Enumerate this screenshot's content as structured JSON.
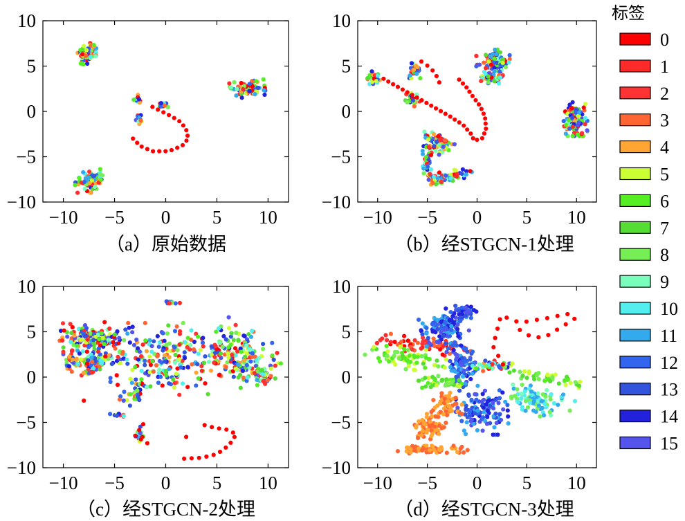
{
  "chart_data": [
    {
      "type": "scatter",
      "caption": "（a）原始数据",
      "xlim": [
        -12,
        12
      ],
      "ylim": [
        -10,
        10
      ],
      "xticks": [
        -10,
        -5,
        0,
        5,
        10
      ],
      "yticks": [
        -10,
        -5,
        0,
        5,
        10
      ],
      "clusters": [
        {
          "cx": -7.7,
          "cy": 6.4,
          "rx": 0.75,
          "ry": 1.05,
          "tilt": -0.4,
          "n": 70,
          "palette": "mixed"
        },
        {
          "cx": 8.0,
          "cy": 2.5,
          "rx": 1.4,
          "ry": 0.75,
          "tilt": 0.15,
          "n": 90,
          "palette": "mixed"
        },
        {
          "cx": -2.7,
          "cy": 1.4,
          "rx": 0.35,
          "ry": 0.35,
          "tilt": 0,
          "n": 14,
          "palette": "mixed"
        },
        {
          "cx": -2.6,
          "cy": -0.9,
          "rx": 0.3,
          "ry": 0.4,
          "tilt": 0,
          "n": 12,
          "palette": "mixed"
        },
        {
          "cx": -0.2,
          "cy": 0.7,
          "rx": 0.45,
          "ry": 0.35,
          "tilt": 0,
          "n": 14,
          "palette": "mixed"
        },
        {
          "cx": -7.5,
          "cy": -7.7,
          "rx": 1.2,
          "ry": 1.05,
          "tilt": 0.3,
          "n": 80,
          "palette": "mixed"
        }
      ],
      "curves": [
        {
          "color_index": 0,
          "points": [
            [
              -1.3,
              0.5
            ],
            [
              0.5,
              -0.5
            ],
            [
              1.5,
              -1.2
            ],
            [
              2.0,
              -2.0
            ],
            [
              2.2,
              -3.0
            ],
            [
              1.6,
              -3.8
            ],
            [
              0.3,
              -4.4
            ],
            [
              -1.3,
              -4.4
            ],
            [
              -2.5,
              -3.8
            ],
            [
              -3.2,
              -3.0
            ]
          ],
          "n": 20
        }
      ]
    },
    {
      "type": "scatter",
      "caption": "（b）经STGCN-1处理",
      "xlim": [
        -12,
        12
      ],
      "ylim": [
        -10,
        10
      ],
      "xticks": [
        -10,
        -5,
        0,
        5,
        10
      ],
      "yticks": [
        -10,
        -5,
        0,
        5,
        10
      ],
      "clusters": [
        {
          "cx": -10.5,
          "cy": 3.6,
          "rx": 0.6,
          "ry": 0.7,
          "tilt": 0,
          "n": 30,
          "palette": "mixed"
        },
        {
          "cx": -6.4,
          "cy": 4.5,
          "rx": 0.7,
          "ry": 0.7,
          "tilt": 0,
          "n": 30,
          "palette": "mixed"
        },
        {
          "cx": -6.5,
          "cy": 1.4,
          "rx": 0.6,
          "ry": 0.7,
          "tilt": 0,
          "n": 25,
          "palette": "mixed"
        },
        {
          "cx": 1.6,
          "cy": 5.5,
          "rx": 1.4,
          "ry": 1.1,
          "tilt": 0,
          "n": 100,
          "palette": "mixed"
        },
        {
          "cx": 1.3,
          "cy": 3.6,
          "rx": 1.4,
          "ry": 0.45,
          "tilt": 0,
          "n": 40,
          "palette": "mixed"
        },
        {
          "cx": 9.8,
          "cy": -0.8,
          "rx": 1.1,
          "ry": 1.6,
          "tilt": 0,
          "n": 120,
          "palette": "mixed"
        },
        {
          "cx": -4.0,
          "cy": -3.5,
          "rx": 1.4,
          "ry": 1.0,
          "tilt": -0.4,
          "n": 70,
          "palette": "mixed"
        },
        {
          "cx": -3.0,
          "cy": -7.2,
          "rx": 2.1,
          "ry": 0.5,
          "tilt": 0.2,
          "n": 70,
          "palette": "mixed"
        },
        {
          "cx": -5.1,
          "cy": -5.6,
          "rx": 0.4,
          "ry": 1.4,
          "tilt": 0,
          "n": 30,
          "palette": "mixed"
        }
      ],
      "curves": [
        {
          "color_index": 0,
          "points": [
            [
              -9.4,
              3.6
            ],
            [
              -7.8,
              2.6
            ],
            [
              -6.0,
              1.5
            ],
            [
              -4.4,
              0.5
            ],
            [
              -2.8,
              -0.5
            ],
            [
              -1.4,
              -1.5
            ],
            [
              -0.6,
              -2.5
            ],
            [
              -0.3,
              -3.2
            ],
            [
              0.5,
              -3.0
            ],
            [
              0.9,
              -2.0
            ],
            [
              0.8,
              -0.6
            ],
            [
              0.3,
              0.6
            ],
            [
              -0.4,
              1.6
            ],
            [
              -1.1,
              2.7
            ],
            [
              -1.8,
              3.5
            ]
          ],
          "n": 36
        },
        {
          "color_index": 0,
          "points": [
            [
              -5.6,
              5.5
            ],
            [
              -4.8,
              4.9
            ],
            [
              -4.2,
              4.2
            ],
            [
              -3.8,
              3.2
            ]
          ],
          "n": 5
        }
      ]
    },
    {
      "type": "scatter",
      "caption": "（c）经STGCN-2处理",
      "xlim": [
        -12,
        12
      ],
      "ylim": [
        -10,
        10
      ],
      "xticks": [
        -10,
        -5,
        0,
        5,
        10
      ],
      "yticks": [
        -10,
        -5,
        0,
        5,
        10
      ],
      "clusters": [
        {
          "cx": -7.2,
          "cy": 4.2,
          "rx": 2.6,
          "ry": 1.2,
          "tilt": -0.1,
          "n": 160,
          "palette": "mixed"
        },
        {
          "cx": -6.8,
          "cy": 1.8,
          "rx": 2.4,
          "ry": 0.8,
          "tilt": 0.1,
          "n": 90,
          "palette": "mixed"
        },
        {
          "cx": -9.3,
          "cy": 2.4,
          "rx": 0.6,
          "ry": 1.0,
          "tilt": 0,
          "n": 20,
          "palette": "mixed"
        },
        {
          "cx": -7.5,
          "cy": 0.5,
          "rx": 0.6,
          "ry": 0.4,
          "tilt": 0,
          "n": 15,
          "palette": "mixed"
        },
        {
          "cx": 0.0,
          "cy": 2.0,
          "rx": 4.5,
          "ry": 3.3,
          "tilt": 0,
          "n": 220,
          "palette": "mixed"
        },
        {
          "cx": 7.3,
          "cy": 2.1,
          "rx": 3.0,
          "ry": 2.6,
          "tilt": -0.6,
          "n": 170,
          "palette": "mixed"
        },
        {
          "cx": 9.5,
          "cy": 0.3,
          "rx": 1.0,
          "ry": 1.0,
          "tilt": 0,
          "n": 40,
          "palette": "mixed"
        },
        {
          "cx": 0.6,
          "cy": 8.2,
          "rx": 0.9,
          "ry": 0.15,
          "tilt": 0,
          "n": 12,
          "palette": "mixed"
        },
        {
          "cx": -4.7,
          "cy": -4.2,
          "rx": 0.7,
          "ry": 0.2,
          "tilt": 0,
          "n": 10,
          "palette": "mixed"
        },
        {
          "cx": -2.6,
          "cy": -6.3,
          "rx": 0.4,
          "ry": 1.0,
          "tilt": 0,
          "n": 14,
          "palette": "mixed"
        },
        {
          "cx": -3.0,
          "cy": -1.8,
          "rx": 1.4,
          "ry": 0.7,
          "tilt": 0.6,
          "n": 30,
          "palette": "mixed"
        }
      ],
      "curves": [
        {
          "color_index": 0,
          "points": [
            [
              -1.8,
              -7.3
            ],
            [
              -3.0,
              -6.5
            ],
            [
              -2.2,
              -5.2
            ]
          ],
          "n": 5
        },
        {
          "color_index": 0,
          "points": [
            [
              1.8,
              -9.0
            ],
            [
              3.5,
              -8.9
            ],
            [
              5.0,
              -8.5
            ],
            [
              6.2,
              -7.5
            ],
            [
              6.9,
              -6.3
            ],
            [
              6.0,
              -5.8
            ],
            [
              4.8,
              -5.6
            ],
            [
              3.8,
              -5.3
            ]
          ],
          "n": 14
        },
        {
          "color_index": 0,
          "points": [
            [
              -8.0,
              -2.6
            ],
            [
              -5.3,
              8.9
            ],
            [
              -10.6,
              4.6
            ],
            [
              1.3,
              -6.4
            ],
            [
              2.0,
              -6.6
            ]
          ],
          "n": 5
        }
      ]
    },
    {
      "type": "scatter",
      "caption": "（d）经STGCN-3处理",
      "xlim": [
        -12,
        12
      ],
      "ylim": [
        -10,
        10
      ],
      "xticks": [
        -10,
        -5,
        0,
        5,
        10
      ],
      "yticks": [
        -10,
        -5,
        0,
        5,
        10
      ],
      "clusters": [
        {
          "cx": -5.4,
          "cy": 3.6,
          "rx": 4.0,
          "ry": 0.8,
          "tilt": -0.12,
          "n": 70,
          "palette": "red"
        },
        {
          "cx": -7.2,
          "cy": 2.1,
          "rx": 3.4,
          "ry": 1.0,
          "tilt": -0.15,
          "n": 70,
          "palette": "green"
        },
        {
          "cx": -3.0,
          "cy": 5.6,
          "rx": 2.2,
          "ry": 1.6,
          "tilt": 0.3,
          "n": 130,
          "palette": "blue"
        },
        {
          "cx": -1.5,
          "cy": 1.2,
          "rx": 1.3,
          "ry": 1.9,
          "tilt": 0,
          "n": 90,
          "palette": "blue"
        },
        {
          "cx": -1.2,
          "cy": 7.2,
          "rx": 1.0,
          "ry": 0.6,
          "tilt": 0,
          "n": 30,
          "palette": "blue"
        },
        {
          "cx": 0.5,
          "cy": -3.6,
          "rx": 2.2,
          "ry": 2.3,
          "tilt": 0,
          "n": 120,
          "palette": "blue"
        },
        {
          "cx": -4.7,
          "cy": -5.5,
          "rx": 1.3,
          "ry": 1.2,
          "tilt": 0,
          "n": 70,
          "palette": "orange"
        },
        {
          "cx": -3.2,
          "cy": -3.0,
          "rx": 1.4,
          "ry": 1.4,
          "tilt": 0,
          "n": 50,
          "palette": "orange"
        },
        {
          "cx": -4.5,
          "cy": -8.0,
          "rx": 3.1,
          "ry": 0.35,
          "tilt": 0,
          "n": 60,
          "palette": "orange"
        },
        {
          "cx": -3.5,
          "cy": -0.6,
          "rx": 2.2,
          "ry": 0.6,
          "tilt": 0,
          "n": 50,
          "palette": "green"
        },
        {
          "cx": 6.0,
          "cy": -2.5,
          "rx": 3.0,
          "ry": 1.3,
          "tilt": -0.4,
          "n": 90,
          "palette": "cyan"
        },
        {
          "cx": 6.8,
          "cy": 0.0,
          "rx": 3.0,
          "ry": 0.5,
          "tilt": -0.2,
          "n": 40,
          "palette": "green"
        },
        {
          "cx": 1.5,
          "cy": 1.2,
          "rx": 1.7,
          "ry": 0.5,
          "tilt": 0,
          "n": 40,
          "palette": "mixed"
        }
      ],
      "curves": [
        {
          "color_index": 0,
          "points": [
            [
              2.6,
              1.4
            ],
            [
              1.6,
              3.4
            ],
            [
              2.4,
              6.8
            ],
            [
              4.3,
              6.0
            ],
            [
              5.9,
              6.3
            ],
            [
              7.6,
              6.6
            ],
            [
              9.0,
              7.0
            ],
            [
              9.9,
              6.5
            ],
            [
              8.6,
              5.6
            ],
            [
              6.8,
              4.4
            ],
            [
              5.5,
              4.4
            ],
            [
              4.3,
              5.2
            ]
          ],
          "n": 20
        }
      ]
    }
  ],
  "legend": {
    "title": "标签",
    "entries": [
      {
        "label": "0",
        "color": "#ff0000"
      },
      {
        "label": "1",
        "color": "#ff2a2a"
      },
      {
        "label": "2",
        "color": "#ff3333"
      },
      {
        "label": "3",
        "color": "#ff6633"
      },
      {
        "label": "4",
        "color": "#ffa533"
      },
      {
        "label": "5",
        "color": "#ccff33"
      },
      {
        "label": "6",
        "color": "#55ee22"
      },
      {
        "label": "7",
        "color": "#55dd33"
      },
      {
        "label": "8",
        "color": "#77ee55"
      },
      {
        "label": "9",
        "color": "#77ffbb"
      },
      {
        "label": "10",
        "color": "#55eeee"
      },
      {
        "label": "11",
        "color": "#33aaee"
      },
      {
        "label": "12",
        "color": "#3366ee"
      },
      {
        "label": "13",
        "color": "#3355dd"
      },
      {
        "label": "14",
        "color": "#2222dd"
      },
      {
        "label": "15",
        "color": "#5555ee"
      }
    ]
  }
}
